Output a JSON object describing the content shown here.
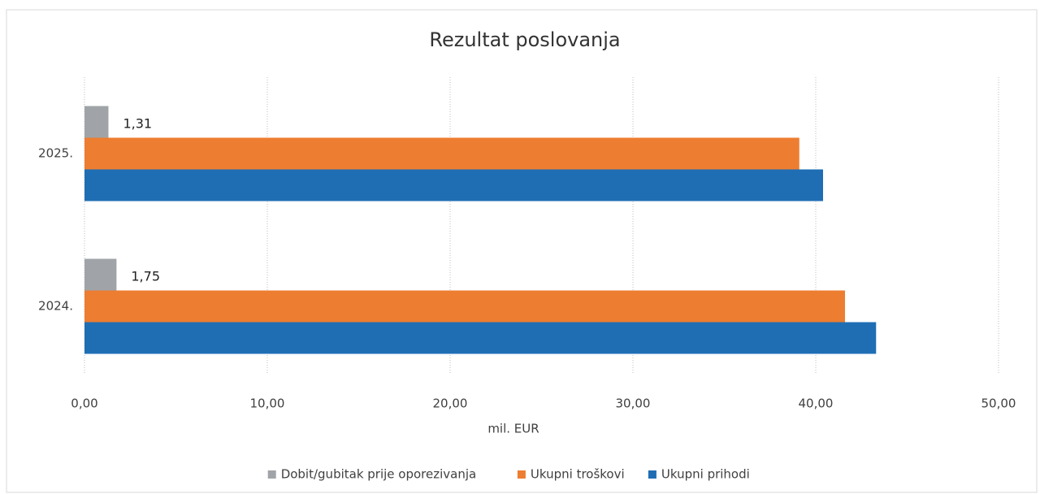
{
  "chart_data": {
    "type": "hbar",
    "title": "Rezultat poslovanja",
    "categories": [
      "2025.",
      "2024."
    ],
    "series": [
      {
        "name": "Dobit/gubitak prije oporezivanja",
        "color": "#a0a4a8",
        "values": [
          1.31,
          1.75
        ],
        "value_labels": [
          "1,31",
          "1,75"
        ]
      },
      {
        "name": "Ukupni troškovi",
        "color": "#ed7d31",
        "values": [
          39.1,
          41.6
        ]
      },
      {
        "name": "Ukupni prihodi",
        "color": "#1f6eb4",
        "values": [
          40.4,
          43.3
        ]
      }
    ],
    "xlabel": "mil. EUR",
    "xlim": [
      0,
      50
    ],
    "xticks": [
      {
        "value": 0,
        "label": "0,00"
      },
      {
        "value": 10,
        "label": "10,00"
      },
      {
        "value": 20,
        "label": "20,00"
      },
      {
        "value": 30,
        "label": "30,00"
      },
      {
        "value": 40,
        "label": "40,00"
      },
      {
        "value": 50,
        "label": "50,00"
      }
    ],
    "grid": true,
    "legend": "bottom"
  }
}
